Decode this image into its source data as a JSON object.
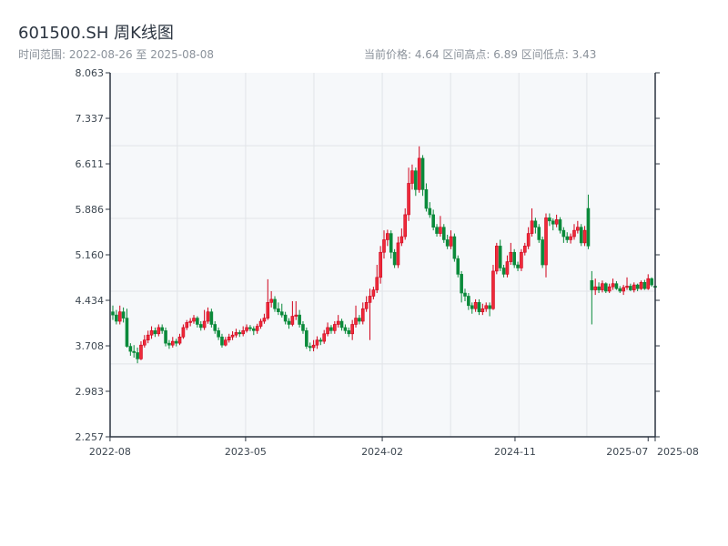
{
  "header": {
    "title": "601500.SH 周K线图",
    "range_label": "时间范围: 2022-08-26 至 2025-08-08",
    "stats_label": "当前价格: 4.64  区间高点: 6.89  区间低点: 3.43"
  },
  "colors": {
    "up": "#d0021b",
    "down": "#0a8a3a",
    "plot_bg": "#f6f8fa",
    "grid": "#e1e4e8",
    "axis": "#2b3440"
  },
  "chart_data": {
    "type": "candlestick",
    "title": "601500.SH 周K线图",
    "period": "weekly",
    "start_date": "2022-08-26",
    "end_date": "2025-08-08",
    "ylim": [
      2.257,
      8.063
    ],
    "y_ticks": [
      "2.257",
      "2.983",
      "3.708",
      "4.434",
      "5.160",
      "5.886",
      "6.611",
      "7.337",
      "8.063"
    ],
    "y_grid": [
      3.42,
      4.58,
      5.74,
      6.9
    ],
    "x_ticks": [
      {
        "label": "2022-08",
        "index": -0.8
      },
      {
        "label": "2023-05",
        "index": 37.7
      },
      {
        "label": "2024-02",
        "index": 76.5
      },
      {
        "label": "2024-11",
        "index": 114.2
      },
      {
        "label": "2025-07",
        "index": 152
      },
      {
        "label": "2025-08",
        "index": 154
      }
    ],
    "x_grid": [
      18.3,
      37.7,
      57.1,
      76.5,
      95.9,
      115.3,
      134.6
    ],
    "xlim_index": [
      -0.8,
      154
    ],
    "ohlc": [
      [
        4.25,
        4.35,
        4.12,
        4.2
      ],
      [
        4.2,
        4.28,
        4.05,
        4.1
      ],
      [
        4.1,
        4.35,
        4.05,
        4.25
      ],
      [
        4.25,
        4.32,
        4.08,
        4.15
      ],
      [
        4.15,
        4.3,
        3.68,
        3.7
      ],
      [
        3.7,
        3.75,
        3.55,
        3.62
      ],
      [
        3.62,
        3.72,
        3.52,
        3.6
      ],
      [
        3.6,
        3.68,
        3.43,
        3.5
      ],
      [
        3.5,
        3.78,
        3.48,
        3.72
      ],
      [
        3.72,
        3.88,
        3.68,
        3.8
      ],
      [
        3.8,
        3.95,
        3.75,
        3.88
      ],
      [
        3.88,
        4.02,
        3.82,
        3.95
      ],
      [
        3.95,
        4.0,
        3.85,
        3.9
      ],
      [
        3.9,
        4.05,
        3.86,
        4.0
      ],
      [
        4.0,
        4.05,
        3.9,
        3.95
      ],
      [
        3.95,
        4.0,
        3.7,
        3.75
      ],
      [
        3.75,
        3.8,
        3.66,
        3.72
      ],
      [
        3.72,
        3.85,
        3.68,
        3.78
      ],
      [
        3.78,
        3.82,
        3.7,
        3.75
      ],
      [
        3.75,
        3.9,
        3.72,
        3.85
      ],
      [
        3.85,
        4.05,
        3.82,
        4.0
      ],
      [
        4.0,
        4.12,
        3.96,
        4.08
      ],
      [
        4.08,
        4.15,
        4.02,
        4.1
      ],
      [
        4.1,
        4.2,
        4.06,
        4.15
      ],
      [
        4.15,
        4.18,
        4.0,
        4.05
      ],
      [
        4.05,
        4.1,
        3.95,
        4.0
      ],
      [
        4.0,
        4.28,
        3.96,
        4.1
      ],
      [
        4.1,
        4.32,
        4.06,
        4.25
      ],
      [
        4.25,
        4.3,
        4.0,
        4.05
      ],
      [
        4.05,
        4.1,
        3.9,
        3.95
      ],
      [
        3.95,
        4.0,
        3.8,
        3.85
      ],
      [
        3.85,
        3.9,
        3.68,
        3.72
      ],
      [
        3.72,
        3.85,
        3.7,
        3.8
      ],
      [
        3.8,
        3.9,
        3.76,
        3.85
      ],
      [
        3.85,
        3.94,
        3.8,
        3.88
      ],
      [
        3.88,
        3.98,
        3.84,
        3.92
      ],
      [
        3.92,
        3.96,
        3.85,
        3.9
      ],
      [
        3.9,
        4.02,
        3.86,
        3.95
      ],
      [
        3.95,
        4.05,
        3.92,
        4.0
      ],
      [
        4.0,
        4.04,
        3.94,
        3.98
      ],
      [
        3.98,
        4.02,
        3.88,
        3.95
      ],
      [
        3.95,
        4.06,
        3.9,
        4.02
      ],
      [
        4.02,
        4.14,
        3.98,
        4.1
      ],
      [
        4.1,
        4.22,
        4.06,
        4.15
      ],
      [
        4.15,
        4.77,
        4.12,
        4.4
      ],
      [
        4.4,
        4.58,
        4.32,
        4.45
      ],
      [
        4.45,
        4.5,
        4.25,
        4.3
      ],
      [
        4.3,
        4.4,
        4.2,
        4.25
      ],
      [
        4.25,
        4.38,
        4.16,
        4.2
      ],
      [
        4.2,
        4.25,
        4.05,
        4.1
      ],
      [
        4.1,
        4.15,
        3.98,
        4.05
      ],
      [
        4.05,
        4.42,
        4.02,
        4.18
      ],
      [
        4.18,
        4.42,
        4.12,
        4.2
      ],
      [
        4.2,
        4.28,
        4.0,
        4.05
      ],
      [
        4.05,
        4.1,
        3.9,
        3.95
      ],
      [
        3.95,
        4.0,
        3.66,
        3.7
      ],
      [
        3.7,
        3.76,
        3.62,
        3.68
      ],
      [
        3.68,
        3.8,
        3.62,
        3.72
      ],
      [
        3.72,
        3.86,
        3.66,
        3.8
      ],
      [
        3.8,
        3.84,
        3.72,
        3.78
      ],
      [
        3.78,
        3.96,
        3.74,
        3.9
      ],
      [
        3.9,
        4.08,
        3.86,
        4.0
      ],
      [
        4.0,
        4.04,
        3.9,
        3.95
      ],
      [
        3.95,
        4.1,
        3.9,
        4.05
      ],
      [
        4.05,
        4.2,
        4.0,
        4.1
      ],
      [
        4.1,
        4.14,
        3.95,
        4.0
      ],
      [
        4.0,
        4.05,
        3.9,
        3.95
      ],
      [
        3.95,
        4.0,
        3.85,
        3.9
      ],
      [
        3.9,
        4.12,
        3.8,
        4.05
      ],
      [
        4.05,
        4.35,
        4.0,
        4.15
      ],
      [
        4.15,
        4.2,
        4.05,
        4.1
      ],
      [
        4.1,
        4.4,
        4.05,
        4.3
      ],
      [
        4.3,
        4.5,
        4.25,
        4.4
      ],
      [
        4.4,
        4.62,
        3.8,
        4.5
      ],
      [
        4.5,
        4.65,
        4.45,
        4.6
      ],
      [
        4.6,
        5.0,
        4.55,
        4.8
      ],
      [
        4.8,
        5.3,
        4.7,
        5.2
      ],
      [
        5.2,
        5.55,
        5.1,
        5.4
      ],
      [
        5.4,
        5.56,
        5.3,
        5.5
      ],
      [
        5.5,
        5.55,
        5.1,
        5.2
      ],
      [
        5.2,
        5.25,
        4.95,
        5.0
      ],
      [
        5.0,
        5.45,
        4.95,
        5.35
      ],
      [
        5.35,
        5.58,
        5.3,
        5.45
      ],
      [
        5.45,
        5.9,
        5.4,
        5.8
      ],
      [
        5.8,
        6.55,
        5.7,
        6.3
      ],
      [
        6.3,
        6.6,
        6.2,
        6.5
      ],
      [
        6.5,
        6.55,
        6.1,
        6.2
      ],
      [
        6.2,
        6.89,
        6.15,
        6.7
      ],
      [
        6.7,
        6.75,
        6.1,
        6.2
      ],
      [
        6.2,
        6.3,
        5.85,
        5.9
      ],
      [
        5.9,
        6.0,
        5.75,
        5.8
      ],
      [
        5.8,
        5.88,
        5.55,
        5.6
      ],
      [
        5.6,
        5.65,
        5.45,
        5.5
      ],
      [
        5.5,
        5.78,
        5.45,
        5.6
      ],
      [
        5.6,
        5.65,
        5.35,
        5.4
      ],
      [
        5.4,
        5.48,
        5.25,
        5.3
      ],
      [
        5.3,
        5.55,
        5.25,
        5.45
      ],
      [
        5.45,
        5.5,
        5.05,
        5.1
      ],
      [
        5.1,
        5.15,
        4.8,
        4.85
      ],
      [
        4.85,
        4.9,
        4.4,
        4.55
      ],
      [
        4.55,
        4.62,
        4.42,
        4.5
      ],
      [
        4.5,
        4.55,
        4.28,
        4.35
      ],
      [
        4.35,
        4.4,
        4.22,
        4.3
      ],
      [
        4.3,
        4.45,
        4.25,
        4.4
      ],
      [
        4.4,
        4.45,
        4.2,
        4.25
      ],
      [
        4.25,
        4.38,
        4.2,
        4.3
      ],
      [
        4.3,
        4.4,
        4.25,
        4.35
      ],
      [
        4.35,
        4.4,
        4.18,
        4.3
      ],
      [
        4.3,
        5.0,
        4.28,
        4.9
      ],
      [
        4.9,
        5.35,
        4.85,
        5.3
      ],
      [
        5.3,
        5.4,
        4.9,
        4.95
      ],
      [
        4.95,
        5.0,
        4.8,
        4.85
      ],
      [
        4.85,
        5.15,
        4.8,
        5.05
      ],
      [
        5.05,
        5.35,
        5.0,
        5.2
      ],
      [
        5.2,
        5.25,
        4.95,
        5.0
      ],
      [
        5.0,
        5.05,
        4.9,
        4.95
      ],
      [
        4.95,
        5.25,
        4.9,
        5.2
      ],
      [
        5.2,
        5.35,
        5.15,
        5.3
      ],
      [
        5.3,
        5.6,
        5.25,
        5.5
      ],
      [
        5.5,
        5.9,
        5.45,
        5.7
      ],
      [
        5.7,
        5.75,
        5.5,
        5.6
      ],
      [
        5.6,
        5.65,
        5.35,
        5.4
      ],
      [
        5.4,
        5.45,
        4.95,
        5.0
      ],
      [
        5.0,
        5.82,
        4.8,
        5.75
      ],
      [
        5.75,
        5.82,
        5.62,
        5.7
      ],
      [
        5.7,
        5.74,
        5.55,
        5.65
      ],
      [
        5.65,
        5.8,
        5.6,
        5.72
      ],
      [
        5.72,
        5.76,
        5.5,
        5.55
      ],
      [
        5.55,
        5.6,
        5.35,
        5.45
      ],
      [
        5.45,
        5.52,
        5.35,
        5.4
      ],
      [
        5.4,
        5.5,
        5.34,
        5.45
      ],
      [
        5.45,
        5.65,
        5.4,
        5.55
      ],
      [
        5.55,
        5.7,
        5.5,
        5.6
      ],
      [
        5.6,
        5.65,
        5.3,
        5.35
      ],
      [
        5.35,
        5.62,
        5.3,
        5.55
      ],
      [
        5.9,
        6.12,
        5.25,
        5.3
      ],
      [
        4.75,
        4.9,
        4.05,
        4.6
      ],
      [
        4.6,
        4.78,
        4.52,
        4.65
      ],
      [
        4.65,
        4.72,
        4.55,
        4.6
      ],
      [
        4.6,
        4.75,
        4.56,
        4.7
      ],
      [
        4.7,
        4.72,
        4.55,
        4.58
      ],
      [
        4.58,
        4.7,
        4.55,
        4.65
      ],
      [
        4.65,
        4.78,
        4.6,
        4.7
      ],
      [
        4.7,
        4.74,
        4.6,
        4.62
      ],
      [
        4.62,
        4.66,
        4.55,
        4.58
      ],
      [
        4.58,
        4.68,
        4.52,
        4.64
      ],
      [
        4.64,
        4.8,
        4.6,
        4.66
      ],
      [
        4.66,
        4.7,
        4.58,
        4.6
      ],
      [
        4.6,
        4.72,
        4.56,
        4.68
      ],
      [
        4.68,
        4.7,
        4.58,
        4.62
      ],
      [
        4.62,
        4.75,
        4.6,
        4.72
      ],
      [
        4.72,
        4.76,
        4.6,
        4.62
      ],
      [
        4.62,
        4.85,
        4.6,
        4.78
      ],
      [
        4.78,
        4.8,
        4.65,
        4.68
      ],
      [
        4.66,
        4.7,
        4.62,
        4.64
      ]
    ]
  }
}
